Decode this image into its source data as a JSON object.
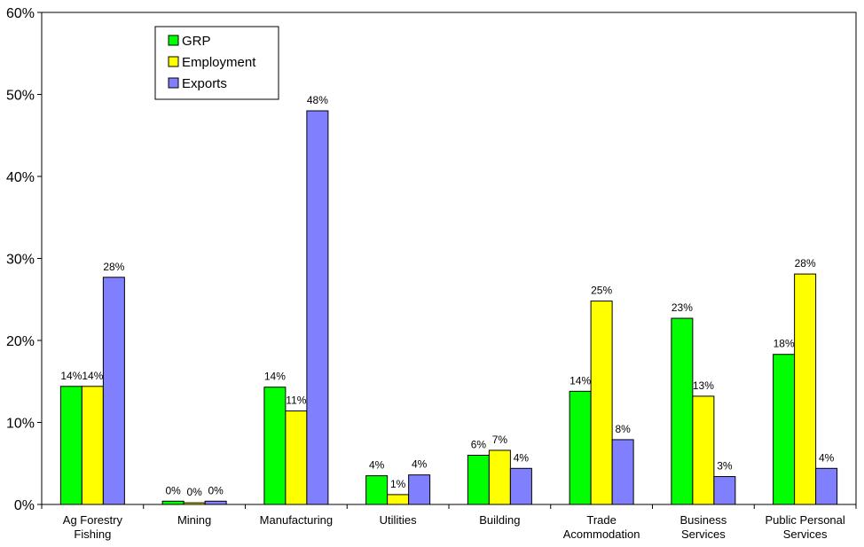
{
  "chart_data": {
    "type": "bar",
    "categories": [
      [
        "Ag Forestry",
        "Fishing"
      ],
      [
        "Mining"
      ],
      [
        "Manufacturing"
      ],
      [
        "Utilities"
      ],
      [
        "Building"
      ],
      [
        "Trade",
        "Acommodation"
      ],
      [
        "Business",
        "Services"
      ],
      [
        "Public Personal",
        "Services"
      ]
    ],
    "series": [
      {
        "name": "GRP",
        "color": "#00ff00",
        "values": [
          14.4,
          0.4,
          14.3,
          3.5,
          6.0,
          13.8,
          22.7,
          18.3
        ],
        "labels": [
          "14%",
          "0%",
          "14%",
          "4%",
          "6%",
          "14%",
          "23%",
          "18%"
        ]
      },
      {
        "name": "Employment",
        "color": "#ffff00",
        "values": [
          14.4,
          0.2,
          11.4,
          1.2,
          6.6,
          24.8,
          13.2,
          28.1
        ],
        "labels": [
          "14%",
          "0%",
          "11%",
          "1%",
          "7%",
          "25%",
          "13%",
          "28%"
        ]
      },
      {
        "name": "Exports",
        "color": "#8080ff",
        "values": [
          27.7,
          0.4,
          48.0,
          3.6,
          4.4,
          7.9,
          3.4,
          4.4
        ],
        "labels": [
          "28%",
          "0%",
          "48%",
          "4%",
          "4%",
          "8%",
          "3%",
          "4%"
        ]
      }
    ],
    "yticks": [
      "0%",
      "10%",
      "20%",
      "30%",
      "40%",
      "50%",
      "60%"
    ],
    "ylim": [
      0,
      60
    ],
    "grid": false,
    "legend_position": "top-left",
    "title": "",
    "xlabel": "",
    "ylabel": ""
  }
}
